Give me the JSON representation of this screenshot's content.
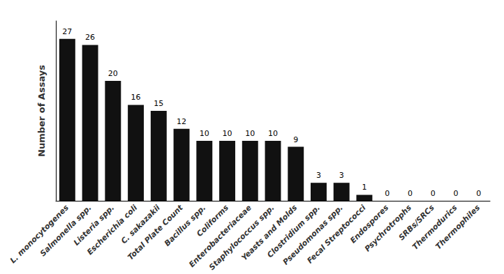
{
  "chart_data": {
    "type": "bar",
    "ylabel": "Number of Assays",
    "categories": [
      "L. monocytogenes",
      "Salmonella spp.",
      "Listeria spp.",
      "Escherichia coli",
      "C. sakazakii",
      "Total Plate Count",
      "Bacillus spp.",
      "Coliforms",
      "Enterobacteriaceae",
      "Staphylococcus spp.",
      "Yeasts and Molds",
      "Clostridium spp.",
      "Pseudomonas spp.",
      "Fecal Streptococci",
      "Endospores",
      "Psychrotrophs",
      "SRBs/SRCs",
      "Thermodurics",
      "Thermophiles"
    ],
    "values": [
      27,
      26,
      20,
      16,
      15,
      12,
      10,
      10,
      10,
      10,
      9,
      3,
      3,
      1,
      0,
      0,
      0,
      0,
      0
    ],
    "color": "#111111",
    "ylim": [
      0,
      30
    ],
    "data_labels": true,
    "tick_labels": "x",
    "grid": false
  }
}
